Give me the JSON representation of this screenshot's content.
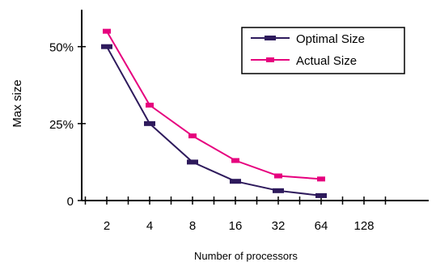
{
  "chart_data": {
    "type": "line",
    "title": "",
    "xlabel": "Number of processors",
    "ylabel": "Max size",
    "x_tick_labels": [
      "2",
      "4",
      "8",
      "16",
      "32",
      "64",
      "128"
    ],
    "y_tick_labels": [
      "0",
      "25%",
      "50%"
    ],
    "y_tick_values": [
      0,
      25,
      50
    ],
    "ylim": [
      0,
      62
    ],
    "grid": false,
    "legend_position": "top-right",
    "series": [
      {
        "name": "Optimal Size",
        "color": "#2e1a5c",
        "x": [
          "2",
          "4",
          "8",
          "16",
          "32",
          "64"
        ],
        "values": [
          50,
          25,
          12.5,
          6.25,
          3.2,
          1.6
        ]
      },
      {
        "name": "Actual Size",
        "color": "#e6007e",
        "x": [
          "2",
          "4",
          "8",
          "16",
          "32",
          "64"
        ],
        "values": [
          55,
          31,
          21,
          13,
          8,
          7
        ]
      }
    ]
  }
}
